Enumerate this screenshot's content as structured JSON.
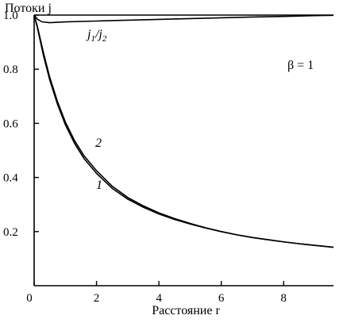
{
  "chart_data": {
    "type": "line",
    "title": "",
    "ylabel": "Потоки j",
    "xlabel": "Расстояние r",
    "xlim": [
      0,
      9.6
    ],
    "ylim": [
      0,
      1.0
    ],
    "grid": false,
    "x_ticks": [
      "0",
      "2",
      "4",
      "6",
      "8"
    ],
    "x_tick_values": [
      0,
      2,
      4,
      6,
      8
    ],
    "y_ticks": [
      "0.2",
      "0.4",
      "0.6",
      "0.8",
      "1.0"
    ],
    "y_tick_values": [
      0.2,
      0.4,
      0.6,
      0.8,
      1.0
    ],
    "series": [
      {
        "name": "1",
        "x": [
          0,
          0.1,
          0.3,
          0.5,
          0.75,
          1.0,
          1.3,
          1.6,
          2.0,
          2.5,
          3.0,
          3.5,
          4.0,
          4.5,
          5.0,
          5.5,
          6.0,
          6.5,
          7.0,
          7.5,
          8.0,
          8.5,
          9.0,
          9.6
        ],
        "y": [
          1.0,
          0.955,
          0.85,
          0.76,
          0.67,
          0.595,
          0.525,
          0.47,
          0.415,
          0.36,
          0.32,
          0.29,
          0.265,
          0.245,
          0.228,
          0.213,
          0.2,
          0.188,
          0.178,
          0.17,
          0.162,
          0.155,
          0.149,
          0.142
        ]
      },
      {
        "name": "2",
        "x": [
          0,
          0.1,
          0.3,
          0.5,
          0.75,
          1.0,
          1.3,
          1.6,
          2.0,
          2.5,
          3.0,
          3.5,
          4.0,
          4.5,
          5.0,
          5.5,
          6.0,
          6.5,
          7.0,
          7.5,
          8.0,
          8.5,
          9.0,
          9.6
        ],
        "y": [
          1.0,
          0.96,
          0.86,
          0.77,
          0.68,
          0.605,
          0.535,
          0.48,
          0.425,
          0.368,
          0.326,
          0.295,
          0.269,
          0.248,
          0.23,
          0.214,
          0.2,
          0.188,
          0.178,
          0.17,
          0.162,
          0.155,
          0.149,
          0.142
        ]
      },
      {
        "name": "j1/j2",
        "x": [
          0,
          0.1,
          0.25,
          0.5,
          1.0,
          2.0,
          3.0,
          4.0,
          5.0,
          6.0,
          7.0,
          8.0,
          9.0,
          9.6
        ],
        "y": [
          1.0,
          0.985,
          0.975,
          0.972,
          0.975,
          0.978,
          0.981,
          0.984,
          0.987,
          0.99,
          0.993,
          0.995,
          0.998,
          0.999
        ]
      }
    ],
    "annotations": {
      "curve1_label": "1",
      "curve2_label": "2",
      "ratio_label": "j1/j2",
      "ratio_main": "j",
      "ratio_sub1": "1",
      "ratio_slash": "/j",
      "ratio_sub2": "2",
      "beta_label": "β = 1"
    },
    "reference_line": {
      "y": 1.0
    }
  }
}
